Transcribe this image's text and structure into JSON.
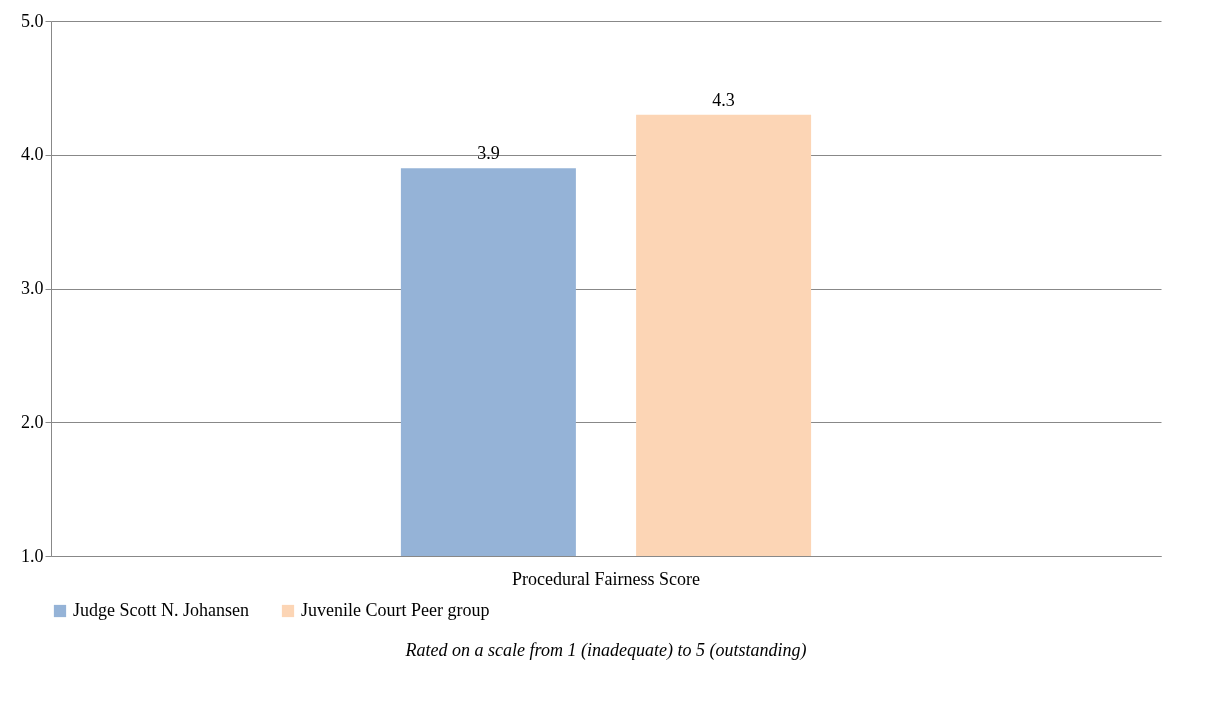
{
  "chart_data": {
    "type": "bar",
    "categories": [
      "Procedural Fairness Score"
    ],
    "series": [
      {
        "name": "Judge Scott N. Johansen",
        "color": "#95b3d7",
        "values": [
          3.9
        ]
      },
      {
        "name": "Juvenile Court Peer group",
        "color": "#fcd5b5",
        "values": [
          4.3
        ]
      }
    ],
    "ylim": [
      1,
      5
    ],
    "yticks": [
      {
        "value": 1,
        "label": "1.0"
      },
      {
        "value": 2,
        "label": "2.0"
      },
      {
        "value": 3,
        "label": "3.0"
      },
      {
        "value": 4,
        "label": "4.0"
      },
      {
        "value": 5,
        "label": "5.0"
      }
    ],
    "grid": "y",
    "legend": "bottom",
    "data_labels": true,
    "annotations": [
      "Rated on a scale from 1 (inadequate) to 5 (outstanding)"
    ]
  }
}
